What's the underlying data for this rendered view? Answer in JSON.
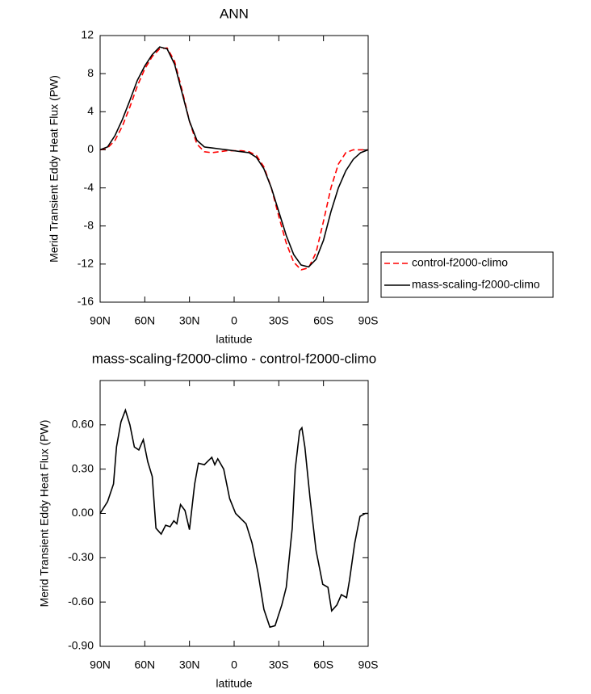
{
  "chart_data": [
    {
      "type": "line",
      "title": "ANN",
      "xlabel": "latitude",
      "ylabel": "Merid Transient Eddy Heat Flux (PW)",
      "x": [
        90,
        85,
        80,
        75,
        70,
        65,
        60,
        55,
        50,
        45,
        40,
        35,
        30,
        25,
        20,
        15,
        10,
        5,
        0,
        -5,
        -10,
        -15,
        -20,
        -25,
        -30,
        -35,
        -40,
        -45,
        -50,
        -55,
        -60,
        -65,
        -70,
        -75,
        -80,
        -85,
        -90
      ],
      "series": [
        {
          "name": "control-f2000-climo",
          "color": "#ff0000",
          "dashed": true,
          "values": [
            0,
            0.2,
            1.0,
            2.5,
            4.5,
            6.7,
            8.5,
            9.8,
            10.6,
            10.7,
            9.3,
            6.3,
            3.0,
            0.6,
            -0.2,
            -0.3,
            -0.2,
            -0.1,
            -0.1,
            -0.1,
            -0.2,
            -0.6,
            -1.8,
            -4.0,
            -7.0,
            -9.8,
            -11.8,
            -12.6,
            -12.4,
            -10.8,
            -7.5,
            -4.0,
            -1.5,
            -0.3,
            0,
            0,
            0
          ]
        },
        {
          "name": "mass-scaling-f2000-climo",
          "color": "#000000",
          "dashed": false,
          "values": [
            0,
            0.3,
            1.5,
            3.2,
            5.2,
            7.3,
            8.8,
            10.0,
            10.8,
            10.6,
            9.0,
            6.0,
            3.0,
            1.0,
            0.3,
            0.2,
            0.1,
            0,
            -0.1,
            -0.2,
            -0.3,
            -0.8,
            -2.0,
            -4.0,
            -6.5,
            -9.0,
            -11.0,
            -12.1,
            -12.3,
            -11.5,
            -9.5,
            -6.5,
            -4.0,
            -2.2,
            -1.0,
            -0.3,
            0
          ]
        }
      ],
      "xlim": [
        90,
        -90
      ],
      "xticks": [
        {
          "value": 90,
          "label": "90N"
        },
        {
          "value": 60,
          "label": "60N"
        },
        {
          "value": 30,
          "label": "30N"
        },
        0,
        {
          "value": -30,
          "label": "30S"
        },
        {
          "value": -60,
          "label": "60S"
        },
        {
          "value": -90,
          "label": "90S"
        }
      ],
      "ylim": [
        -16,
        12
      ],
      "yticks": [
        12,
        8,
        4,
        0,
        -4,
        -8,
        -12,
        -16
      ],
      "legend": "right"
    },
    {
      "type": "line",
      "title": "mass-scaling-f2000-climo - control-f2000-climo",
      "xlabel": "latitude",
      "ylabel": "Merid Transient Eddy Heat Flux (PW)",
      "x": [
        90,
        85,
        81,
        79,
        76,
        73,
        70,
        67,
        64,
        61,
        58,
        55,
        52.5,
        49,
        46,
        43,
        40.5,
        38.5,
        36,
        33,
        30,
        26.5,
        24,
        20,
        15,
        13,
        11,
        7,
        3,
        -1,
        -8,
        -12,
        -16,
        -20,
        -24,
        -27.5,
        -32,
        -35,
        -39,
        -41,
        -44,
        -45.5,
        -47.5,
        -51,
        -55,
        -59.5,
        -63,
        -65.5,
        -69,
        -72,
        -75.5,
        -77.5,
        -81,
        -84.5,
        -88,
        -90
      ],
      "series": [
        {
          "name": "mass-scaling-f2000-climo - control-f2000-climo",
          "color": "#000000",
          "dashed": false,
          "values": [
            0,
            0.08,
            0.2,
            0.45,
            0.62,
            0.7,
            0.6,
            0.45,
            0.43,
            0.5,
            0.35,
            0.25,
            -0.1,
            -0.14,
            -0.08,
            -0.09,
            -0.05,
            -0.07,
            0.06,
            0.02,
            -0.11,
            0.2,
            0.34,
            0.33,
            0.38,
            0.33,
            0.37,
            0.3,
            0.1,
            0.0,
            -0.07,
            -0.2,
            -0.4,
            -0.65,
            -0.77,
            -0.76,
            -0.62,
            -0.5,
            -0.1,
            0.3,
            0.56,
            0.58,
            0.45,
            0.1,
            -0.25,
            -0.48,
            -0.5,
            -0.66,
            -0.62,
            -0.55,
            -0.57,
            -0.45,
            -0.2,
            -0.02,
            0,
            0
          ]
        }
      ],
      "xlim": [
        90,
        -90
      ],
      "xticks": [
        {
          "value": 90,
          "label": "90N"
        },
        {
          "value": 60,
          "label": "60N"
        },
        {
          "value": 30,
          "label": "30N"
        },
        0,
        {
          "value": -30,
          "label": "30S"
        },
        {
          "value": -60,
          "label": "60S"
        },
        {
          "value": -90,
          "label": "90S"
        }
      ],
      "ylim": [
        -0.9,
        0.9
      ],
      "yticks": [
        {
          "value": 0.6,
          "label": "0.60"
        },
        {
          "value": 0.3,
          "label": "0.30"
        },
        {
          "value": 0,
          "label": "0.00"
        },
        {
          "value": -0.3,
          "label": "-0.30"
        },
        {
          "value": -0.6,
          "label": "-0.60"
        },
        {
          "value": -0.9,
          "label": "-0.90"
        }
      ]
    }
  ]
}
